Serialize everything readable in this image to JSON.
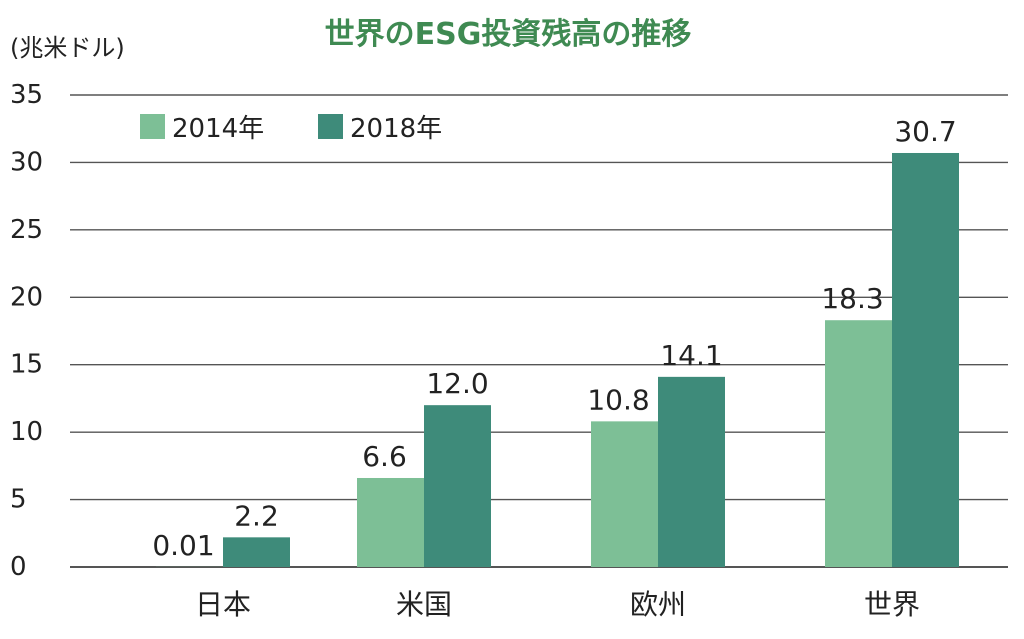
{
  "colors": {
    "title": "#3f8a52",
    "series_2014": "#7dbf96",
    "series_2018": "#3e8b7a",
    "grid": "#555555",
    "text": "#222222"
  },
  "chart_data": {
    "type": "bar",
    "title": "世界のESG投資残高の推移",
    "ylabel": "(兆米ドル)",
    "xlabel": "",
    "categories": [
      "日本",
      "米国",
      "欧州",
      "世界"
    ],
    "series": [
      {
        "name": "2014年",
        "values": [
          0.01,
          6.6,
          10.8,
          18.3
        ],
        "labels": [
          "0.01",
          "6.6",
          "10.8",
          "18.3"
        ]
      },
      {
        "name": "2018年",
        "values": [
          2.2,
          12.0,
          14.1,
          30.7
        ],
        "labels": [
          "2.2",
          "12.0",
          "14.1",
          "30.7"
        ]
      }
    ],
    "ylim": [
      0,
      35
    ],
    "yticks": [
      0,
      5,
      10,
      15,
      20,
      25,
      30,
      35
    ],
    "grid": true,
    "legend_position": "top-left"
  }
}
